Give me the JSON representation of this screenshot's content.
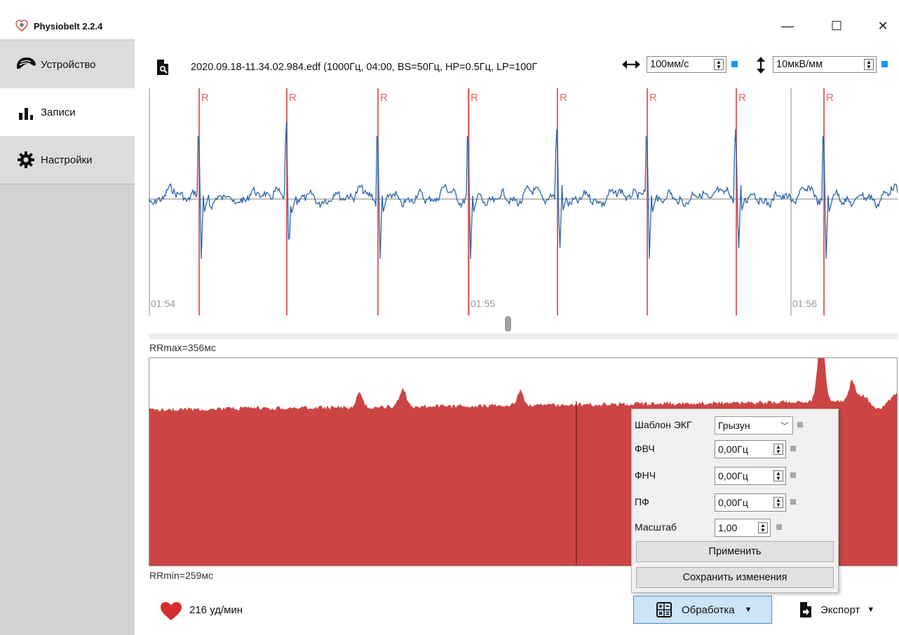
{
  "window": {
    "title": "Physiobelt 2.2.4",
    "controls": [
      "—",
      "☐",
      "✕"
    ]
  },
  "sidebar": {
    "items": [
      {
        "label": "Устройство",
        "icon": "helmet-icon"
      },
      {
        "label": "Записи",
        "icon": "bar-chart-icon"
      },
      {
        "label": "Настройки",
        "icon": "gear-icon"
      }
    ],
    "active_index": 1
  },
  "toolbar": {
    "file_label": "2020.09.18-11.34.02.984.edf (1000Гц, 04:00, BS=50Гц, HP=0.5Гц, LP=100Г",
    "speed_value": "100мм/с",
    "gain_value": "10мкВ/мм",
    "accent_color": "#1e90ff"
  },
  "ecg": {
    "r_label": "R",
    "r_marker_color": "#e06666",
    "trace_color": "#2a64a8",
    "time_labels": [
      "01:54",
      "01:55",
      "01:56"
    ]
  },
  "rr": {
    "max_label": "RRmax=356мс",
    "min_label": "RRmin=259мс",
    "fill_color": "#cc4444"
  },
  "status": {
    "heart_rate": "216 уд/мин"
  },
  "buttons": {
    "process": "Обработка",
    "export": "Экспорт"
  },
  "popup": {
    "template_label": "Шаблон ЭКГ",
    "template_value": "Грызун",
    "hpf_label": "ФВЧ",
    "hpf_value": "0,00Гц",
    "lpf_label": "ФНЧ",
    "lpf_value": "0,00Гц",
    "notch_label": "ПФ",
    "notch_value": "0,00Гц",
    "scale_label": "Масштаб",
    "scale_value": "1,00",
    "apply_label": "Применить",
    "save_label": "Сохранить изменения"
  }
}
